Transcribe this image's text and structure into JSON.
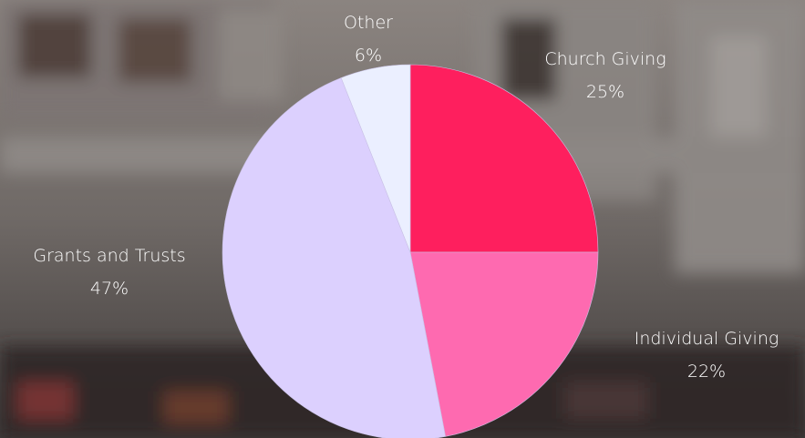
{
  "colors": {
    "church": "#fe1f5e",
    "individual": "#fe6ab0",
    "grants": "#dcd0fe",
    "other": "#ebefff"
  },
  "chart_data": {
    "type": "pie",
    "title": "",
    "start_angle_deg": 0,
    "direction": "clockwise",
    "slices": [
      {
        "key": "church",
        "label": "Church Giving",
        "value": 25,
        "percent_label": "25%",
        "color": "#fe1f5e"
      },
      {
        "key": "individual",
        "label": "Individual Giving",
        "value": 22,
        "percent_label": "22%",
        "color": "#fe6ab0"
      },
      {
        "key": "grants",
        "label": "Grants and Trusts",
        "value": 47,
        "percent_label": "47%",
        "color": "#dcd0fe"
      },
      {
        "key": "other",
        "label": "Other",
        "value": 6,
        "percent_label": "6%",
        "color": "#ebefff"
      }
    ]
  }
}
